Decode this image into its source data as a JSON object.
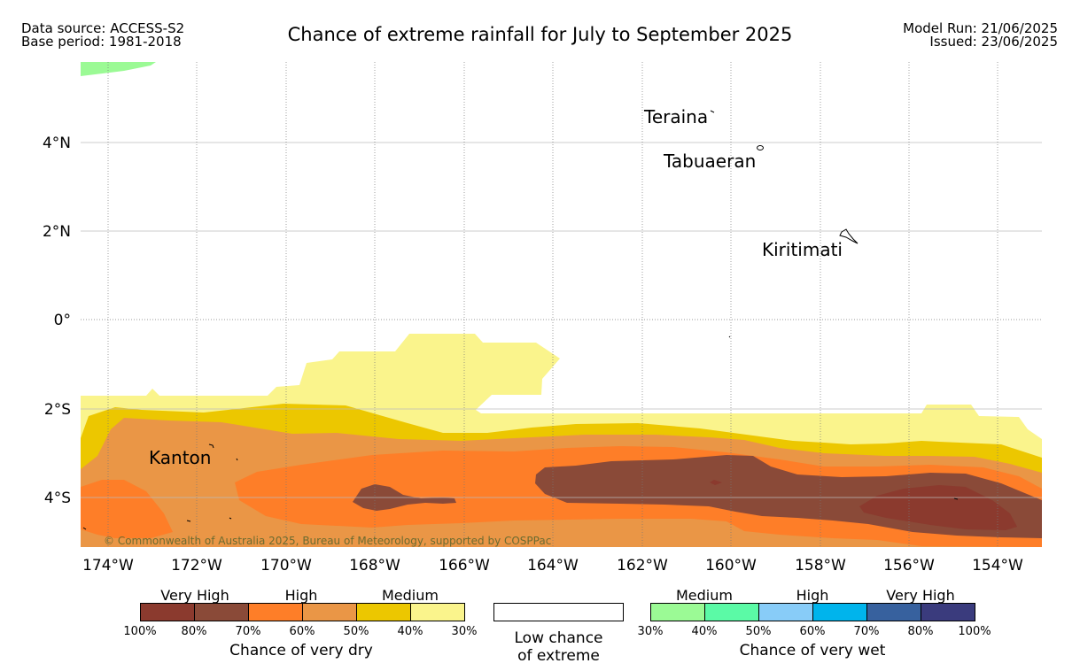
{
  "header": {
    "data_source": "Data source: ACCESS-S2",
    "base_period": "Base period: 1981-2018",
    "title": "Chance of extreme rainfall for July to September 2025",
    "model_run": "Model Run: 21/06/2025",
    "issued": "Issued: 23/06/2025"
  },
  "map": {
    "lat_ticks": [
      "4°N",
      "2°N",
      "0°",
      "2°S",
      "4°S"
    ],
    "lon_ticks": [
      "174°W",
      "172°W",
      "170°W",
      "168°W",
      "166°W",
      "164°W",
      "162°W",
      "160°W",
      "158°W",
      "156°W",
      "154°W"
    ],
    "places": [
      "Teraina",
      "Tabuaeran",
      "Kiritimati",
      "Kanton"
    ],
    "copyright": "© Commonwealth of Australia 2025, Bureau of Meteorology, supported by COSPPac"
  },
  "legend": {
    "dry": {
      "groups": [
        "Very High",
        "High",
        "Medium"
      ],
      "ticks": [
        "100%",
        "80%",
        "70%",
        "60%",
        "50%",
        "40%",
        "30%"
      ],
      "colors": [
        "#8b3a2e",
        "#8a4a38",
        "#fe7e28",
        "#ea9646",
        "#ecc700",
        "#faf48c"
      ],
      "caption": "Chance of very dry"
    },
    "neutral": {
      "line1": "Low chance",
      "line2": "of extreme"
    },
    "wet": {
      "groups": [
        "Medium",
        "High",
        "Very High"
      ],
      "ticks": [
        "30%",
        "40%",
        "50%",
        "60%",
        "70%",
        "80%",
        "100%"
      ],
      "colors": [
        "#9bfa95",
        "#5bfaa6",
        "#88ccf8",
        "#00b4ec",
        "#37619e",
        "#3a3b7d"
      ],
      "caption": "Chance of very wet"
    }
  }
}
